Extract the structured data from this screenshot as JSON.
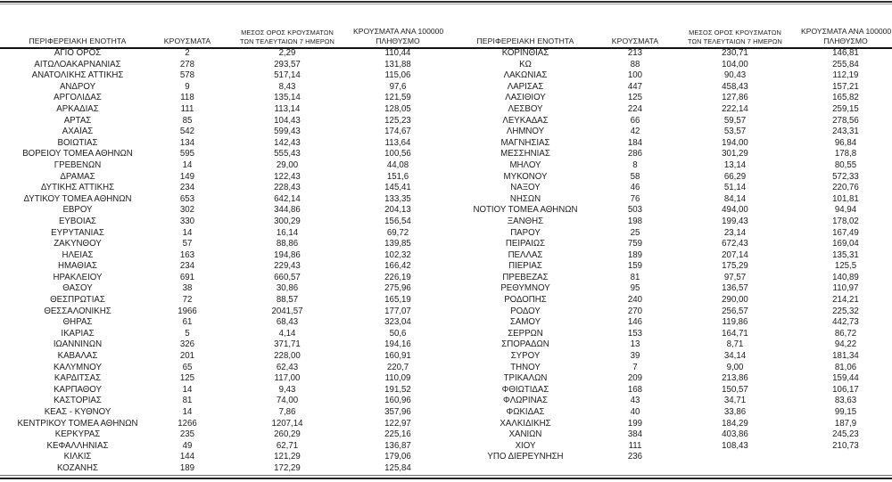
{
  "headers": {
    "region": "ΠΕΡΙΦΕΡΕΙΑΚΗ ΕΝΟΤΗΤΑ",
    "cases": "ΚΡΟΥΣΜΑΤΑ",
    "avg7_line1": "ΜΕΣΟΣ ΟΡΟΣ ΚΡΟΥΣΜΑΤΩΝ",
    "avg7_line2": "ΤΩΝ ΤΕΛΕΥΤΑΙΩΝ 7 ΗΜΕΡΩΝ",
    "per100k_line1": "ΚΡΟΥΣΜΑΤΑ ΑΝΑ 100000",
    "per100k_line2": "ΠΛΗΘΥΣΜΟ"
  },
  "left_rows": [
    [
      "ΑΓΙΟ ΟΡΟΣ",
      "2",
      "2,29",
      "110,44"
    ],
    [
      "ΑΙΤΩΛΟΑΚΑΡΝΑΝΙΑΣ",
      "278",
      "293,57",
      "131,88"
    ],
    [
      "ΑΝΑΤΟΛΙΚΗΣ ΑΤΤΙΚΗΣ",
      "578",
      "517,14",
      "115,06"
    ],
    [
      "ΑΝΔΡΟΥ",
      "9",
      "8,43",
      "97,6"
    ],
    [
      "ΑΡΓΟΛΙΔΑΣ",
      "118",
      "135,14",
      "121,59"
    ],
    [
      "ΑΡΚΑΔΙΑΣ",
      "111",
      "113,14",
      "128,05"
    ],
    [
      "ΑΡΤΑΣ",
      "85",
      "104,43",
      "125,23"
    ],
    [
      "ΑΧΑΪΑΣ",
      "542",
      "599,43",
      "174,67"
    ],
    [
      "ΒΟΙΩΤΙΑΣ",
      "134",
      "142,43",
      "113,64"
    ],
    [
      "ΒΟΡΕΙΟΥ ΤΟΜΕΑ ΑΘΗΝΩΝ",
      "595",
      "555,43",
      "100,56"
    ],
    [
      "ΓΡΕΒΕΝΩΝ",
      "14",
      "29,00",
      "44,08"
    ],
    [
      "ΔΡΑΜΑΣ",
      "149",
      "122,43",
      "151,6"
    ],
    [
      "ΔΥΤΙΚΗΣ ΑΤΤΙΚΗΣ",
      "234",
      "228,43",
      "145,41"
    ],
    [
      "ΔΥΤΙΚΟΥ ΤΟΜΕΑ ΑΘΗΝΩΝ",
      "653",
      "642,14",
      "133,35"
    ],
    [
      "ΕΒΡΟΥ",
      "302",
      "344,86",
      "204,13"
    ],
    [
      "ΕΥΒΟΙΑΣ",
      "330",
      "300,29",
      "156,54"
    ],
    [
      "ΕΥΡΥΤΑΝΙΑΣ",
      "14",
      "16,14",
      "69,72"
    ],
    [
      "ΖΑΚΥΝΘΟΥ",
      "57",
      "88,86",
      "139,85"
    ],
    [
      "ΗΛΕΙΑΣ",
      "163",
      "194,86",
      "102,32"
    ],
    [
      "ΗΜΑΘΙΑΣ",
      "234",
      "229,43",
      "166,42"
    ],
    [
      "ΗΡΑΚΛΕΙΟΥ",
      "691",
      "660,57",
      "226,19"
    ],
    [
      "ΘΑΣΟΥ",
      "38",
      "30,86",
      "275,96"
    ],
    [
      "ΘΕΣΠΡΩΤΙΑΣ",
      "72",
      "88,57",
      "165,19"
    ],
    [
      "ΘΕΣΣΑΛΟΝΙΚΗΣ",
      "1966",
      "2041,57",
      "177,07"
    ],
    [
      "ΘΗΡΑΣ",
      "61",
      "68,43",
      "323,04"
    ],
    [
      "ΙΚΑΡΙΑΣ",
      "5",
      "4,14",
      "50,6"
    ],
    [
      "ΙΩΑΝΝΙΝΩΝ",
      "326",
      "371,71",
      "194,16"
    ],
    [
      "ΚΑΒΑΛΑΣ",
      "201",
      "228,00",
      "160,91"
    ],
    [
      "ΚΑΛΥΜΝΟΥ",
      "65",
      "62,43",
      "220,7"
    ],
    [
      "ΚΑΡΔΙΤΣΑΣ",
      "125",
      "117,00",
      "110,09"
    ],
    [
      "ΚΑΡΠΑΘΟΥ",
      "14",
      "9,43",
      "191,52"
    ],
    [
      "ΚΑΣΤΟΡΙΑΣ",
      "81",
      "74,00",
      "160,96"
    ],
    [
      "ΚΕΑΣ - ΚΥΘΝΟΥ",
      "14",
      "7,86",
      "357,96"
    ],
    [
      "ΚΕΝΤΡΙΚΟΥ ΤΟΜΕΑ ΑΘΗΝΩΝ",
      "1266",
      "1207,14",
      "122,97"
    ],
    [
      "ΚΕΡΚΥΡΑΣ",
      "235",
      "260,29",
      "225,16"
    ],
    [
      "ΚΕΦΑΛΛΗΝΙΑΣ",
      "49",
      "62,71",
      "136,87"
    ],
    [
      "ΚΙΛΚΙΣ",
      "144",
      "121,29",
      "179,06"
    ],
    [
      "ΚΟΖΑΝΗΣ",
      "189",
      "172,29",
      "125,84"
    ]
  ],
  "right_rows": [
    [
      "ΚΟΡΙΝΘΙΑΣ",
      "213",
      "230,71",
      "146,81"
    ],
    [
      "ΚΩ",
      "88",
      "104,00",
      "255,84"
    ],
    [
      "ΛΑΚΩΝΙΑΣ",
      "100",
      "90,43",
      "112,19"
    ],
    [
      "ΛΑΡΙΣΑΣ",
      "447",
      "458,43",
      "157,21"
    ],
    [
      "ΛΑΣΙΘΙΟΥ",
      "125",
      "127,86",
      "165,82"
    ],
    [
      "ΛΕΣΒΟΥ",
      "224",
      "222,14",
      "259,15"
    ],
    [
      "ΛΕΥΚΑΔΑΣ",
      "66",
      "59,57",
      "278,56"
    ],
    [
      "ΛΗΜΝΟΥ",
      "42",
      "53,57",
      "243,31"
    ],
    [
      "ΜΑΓΝΗΣΙΑΣ",
      "184",
      "194,00",
      "96,84"
    ],
    [
      "ΜΕΣΣΗΝΙΑΣ",
      "286",
      "301,29",
      "178,8"
    ],
    [
      "ΜΗΛΟΥ",
      "8",
      "13,14",
      "80,55"
    ],
    [
      "ΜΥΚΟΝΟΥ",
      "58",
      "66,29",
      "572,33"
    ],
    [
      "ΝΑΞΟΥ",
      "46",
      "51,14",
      "220,76"
    ],
    [
      "ΝΗΣΩΝ",
      "76",
      "84,14",
      "101,81"
    ],
    [
      "ΝΟΤΙΟΥ ΤΟΜΕΑ ΑΘΗΝΩΝ",
      "503",
      "494,00",
      "94,94"
    ],
    [
      "ΞΑΝΘΗΣ",
      "198",
      "199,43",
      "178,02"
    ],
    [
      "ΠΑΡΟΥ",
      "25",
      "23,14",
      "167,49"
    ],
    [
      "ΠΕΙΡΑΙΩΣ",
      "759",
      "672,43",
      "169,04"
    ],
    [
      "ΠΕΛΛΑΣ",
      "189",
      "207,14",
      "135,31"
    ],
    [
      "ΠΙΕΡΙΑΣ",
      "159",
      "175,29",
      "125,5"
    ],
    [
      "ΠΡΕΒΕΖΑΣ",
      "81",
      "97,57",
      "140,89"
    ],
    [
      "ΡΕΘΥΜΝΟΥ",
      "95",
      "136,57",
      "110,97"
    ],
    [
      "ΡΟΔΟΠΗΣ",
      "240",
      "290,00",
      "214,21"
    ],
    [
      "ΡΟΔΟΥ",
      "270",
      "256,57",
      "225,32"
    ],
    [
      "ΣΑΜΟΥ",
      "146",
      "119,86",
      "442,73"
    ],
    [
      "ΣΕΡΡΩΝ",
      "153",
      "164,71",
      "86,72"
    ],
    [
      "ΣΠΟΡΑΔΩΝ",
      "13",
      "8,71",
      "94,22"
    ],
    [
      "ΣΥΡΟΥ",
      "39",
      "34,14",
      "181,34"
    ],
    [
      "ΤΗΝΟΥ",
      "7",
      "9,00",
      "81,06"
    ],
    [
      "ΤΡΙΚΑΛΩΝ",
      "209",
      "213,86",
      "159,44"
    ],
    [
      "ΦΘΙΩΤΙΔΑΣ",
      "168",
      "150,57",
      "106,17"
    ],
    [
      "ΦΛΩΡΙΝΑΣ",
      "43",
      "34,71",
      "83,63"
    ],
    [
      "ΦΩΚΙΔΑΣ",
      "40",
      "33,86",
      "99,15"
    ],
    [
      "ΧΑΛΚΙΔΙΚΗΣ",
      "199",
      "184,29",
      "187,9"
    ],
    [
      "ΧΑΝΙΩΝ",
      "384",
      "403,86",
      "245,23"
    ],
    [
      "ΧΙΟΥ",
      "111",
      "108,43",
      "210,73"
    ],
    [
      "ΥΠΟ ΔΙΕΡΕΥΝΗΣΗ",
      "236",
      "",
      ""
    ]
  ]
}
